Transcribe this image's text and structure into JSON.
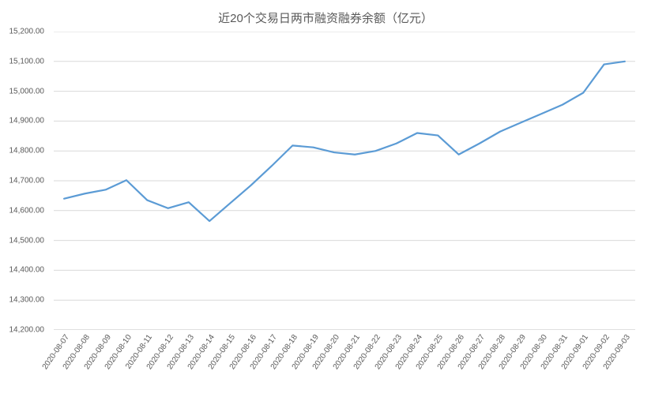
{
  "chart": {
    "type": "line",
    "title": "近20个交易日两市融资融券余额（亿元）",
    "title_fontsize": 15,
    "title_color": "#595959",
    "background_color": "#ffffff",
    "plot_background": "#ffffff",
    "grid_color": "#d9d9d9",
    "axis_line_color": "#bfbfbf",
    "line_color": "#5b9bd5",
    "line_width": 2.2,
    "y_axis": {
      "min": 14200,
      "max": 15200,
      "tick_step": 100,
      "ticks": [
        14200,
        14300,
        14400,
        14500,
        14600,
        14700,
        14800,
        14900,
        15000,
        15100,
        15200
      ],
      "label_format": "fixed2_comma",
      "label_fontsize": 10,
      "label_color": "#595959"
    },
    "x_axis": {
      "categories": [
        "2020-08-07",
        "2020-08-08",
        "2020-08-09",
        "2020-08-10",
        "2020-08-11",
        "2020-08-12",
        "2020-08-13",
        "2020-08-14",
        "2020-08-15",
        "2020-08-16",
        "2020-08-17",
        "2020-08-18",
        "2020-08-19",
        "2020-08-20",
        "2020-08-21",
        "2020-08-22",
        "2020-08-23",
        "2020-08-24",
        "2020-08-25",
        "2020-08-26",
        "2020-08-27",
        "2020-08-28",
        "2020-08-29",
        "2020-08-30",
        "2020-08-31",
        "2020-09-01",
        "2020-09-02",
        "2020-09-03"
      ],
      "label_fontsize": 10,
      "label_color": "#595959",
      "label_rotation": -55
    },
    "series": {
      "name": "融资融券余额",
      "values": [
        14640,
        14657,
        14670,
        14702,
        14635,
        14608,
        14628,
        14565,
        14625,
        14685,
        14750,
        14818,
        14812,
        14795,
        14788,
        14800,
        14825,
        14860,
        14852,
        14788,
        14825,
        14865,
        14895,
        14925,
        14955,
        14995,
        15090,
        15100
      ]
    }
  }
}
